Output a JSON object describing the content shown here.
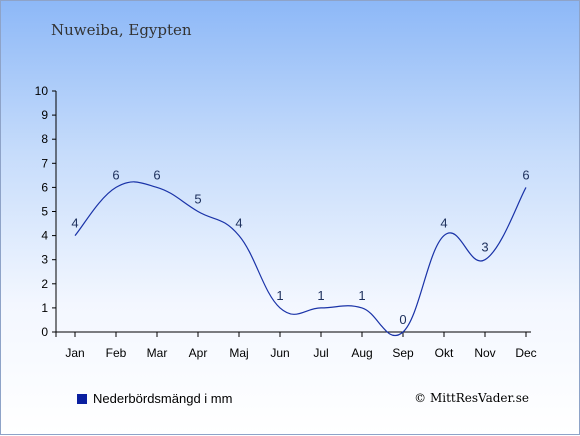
{
  "chart_data": {
    "type": "line",
    "title": "Nuweiba, Egypten",
    "categories": [
      "Jan",
      "Feb",
      "Mar",
      "Apr",
      "Maj",
      "Jun",
      "Jul",
      "Aug",
      "Sep",
      "Okt",
      "Nov",
      "Dec"
    ],
    "series": [
      {
        "name": "Nederbördsmängd i mm",
        "values": [
          4,
          6,
          6,
          5,
          4,
          1,
          1,
          1,
          0,
          4,
          3,
          6
        ],
        "color": "#1a33a8"
      }
    ],
    "yticks": [
      0,
      1,
      2,
      3,
      4,
      5,
      6,
      7,
      8,
      9,
      10
    ],
    "ylim": [
      0,
      10
    ],
    "grid": false,
    "legend_position": "bottom-left",
    "colors": {
      "line": "#1a33a8",
      "legend_swatch": "#0a1fa0"
    }
  },
  "footer": {
    "credit": "© MittResVader.se"
  }
}
